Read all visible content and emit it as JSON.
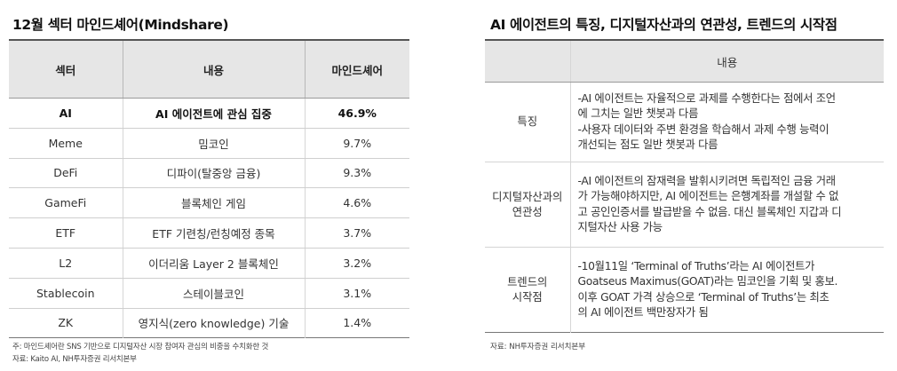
{
  "left": {
    "title": "12월 섹터 마인드셰어(Mindshare)",
    "headers": [
      "섹터",
      "내용",
      "마인드셰어"
    ],
    "rows": [
      {
        "sector": "AI",
        "content": "AI 에이전트에 관심 집중",
        "share": "46.9%",
        "bold": true
      },
      {
        "sector": "Meme",
        "content": "밈코인",
        "share": "9.7%"
      },
      {
        "sector": "DeFi",
        "content": "디파이(탈중앙 금융)",
        "share": "9.3%"
      },
      {
        "sector": "GameFi",
        "content": "블록체인 게임",
        "share": "4.6%"
      },
      {
        "sector": "ETF",
        "content": "ETF 기련칭/런칭예정 종목",
        "share": "3.7%"
      },
      {
        "sector": "L2",
        "content": "이더리움 Layer 2 블록체인",
        "share": "3.2%"
      },
      {
        "sector": "Stablecoin",
        "content": "스테이블코인",
        "share": "3.1%"
      },
      {
        "sector": "ZK",
        "content": "영지식(zero knowledge) 기술",
        "share": "1.4%"
      }
    ],
    "note": "주: 마인드셰어란 SNS 기반으로 디지털자산 시장 참여자 관심의 비중을 수치화한 것",
    "source": "자료: Kaito AI, NH투자증권 리서치본부"
  },
  "right": {
    "title": "AI 에이전트의 특징, 디지털자산과의 연관성, 트렌드의 시작점",
    "header": "내용",
    "rows": [
      {
        "label_lines": [
          "특징"
        ],
        "lines": [
          "-AI 에이전트는 자율적으로 과제를 수행한다는 점에서 조언",
          "에 그치는 일반 챗봇과 다름",
          "-사용자 데이터와 주변 환경을 학습해서 과제 수행 능력이",
          "개선되는 점도 일반 챗봇과 다름"
        ]
      },
      {
        "label_lines": [
          "디지털자산과의",
          "연관성"
        ],
        "lines": [
          "-AI 에이전트의 잠재력을 발휘시키려면 독립적인 금융 거래",
          "가 가능해야하지만, AI 에이전트는 은행계좌를 개설할 수 없",
          "고 공인인증서를 발급받을 수 없음. 대신 블록체인 지갑과 디",
          "지털자산 사용 가능"
        ]
      },
      {
        "label_lines": [
          "트렌드의",
          "시작점"
        ],
        "lines": [
          "-10월11일 ‘Terminal of Truths’라는 AI 에이전트가",
          "Goatseus Maximus(GOAT)라는 밈코인을 기획 및 홍보.",
          "이후 GOAT 가격 상승으로 ‘Terminal of Truths’는 최초",
          "의 AI 에이전트 백만장자가 됨"
        ]
      }
    ],
    "source": "자료: NH투자증권 리서치본부"
  }
}
